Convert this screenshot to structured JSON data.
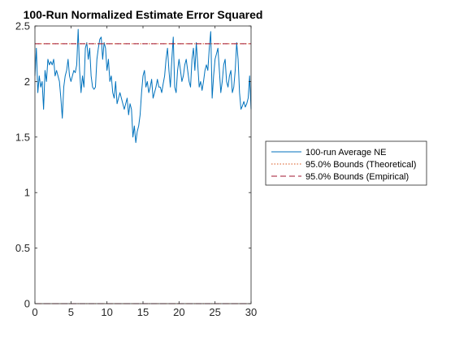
{
  "chart_data": {
    "type": "line",
    "title": "100-Run Normalized Estimate Error Squared",
    "xlabel": "",
    "ylabel": "",
    "xlim": [
      0,
      30
    ],
    "ylim": [
      0,
      2.5
    ],
    "x_ticks": [
      "0",
      "5",
      "10",
      "15",
      "20",
      "25",
      "30"
    ],
    "y_ticks": [
      "0",
      "0.5",
      "1",
      "1.5",
      "2",
      "2.5"
    ],
    "grid": false,
    "legend_position": "right",
    "series": [
      {
        "name": "100-run Average NE",
        "color": "#0072BD",
        "style": "solid",
        "x": [
          0,
          0.2,
          0.4,
          0.6,
          0.8,
          1.0,
          1.2,
          1.4,
          1.6,
          1.8,
          2.0,
          2.2,
          2.4,
          2.6,
          2.8,
          3.0,
          3.2,
          3.4,
          3.6,
          3.8,
          4.0,
          4.2,
          4.4,
          4.6,
          4.8,
          5.0,
          5.2,
          5.4,
          5.6,
          5.8,
          6.0,
          6.2,
          6.4,
          6.6,
          6.8,
          7.0,
          7.2,
          7.4,
          7.6,
          7.8,
          8.0,
          8.2,
          8.4,
          8.6,
          8.8,
          9.0,
          9.2,
          9.4,
          9.6,
          9.8,
          10.0,
          10.2,
          10.4,
          10.6,
          10.8,
          11.0,
          11.2,
          11.4,
          11.6,
          11.8,
          12.0,
          12.2,
          12.4,
          12.6,
          12.8,
          13.0,
          13.2,
          13.4,
          13.6,
          13.8,
          14.0,
          14.2,
          14.4,
          14.6,
          14.8,
          15.0,
          15.2,
          15.4,
          15.6,
          15.8,
          16.0,
          16.2,
          16.4,
          16.6,
          16.8,
          17.0,
          17.2,
          17.4,
          17.6,
          17.8,
          18.0,
          18.2,
          18.4,
          18.6,
          18.8,
          19.0,
          19.2,
          19.4,
          19.6,
          19.8,
          20.0,
          20.2,
          20.4,
          20.6,
          20.8,
          21.0,
          21.2,
          21.4,
          21.6,
          21.8,
          22.0,
          22.2,
          22.4,
          22.6,
          22.8,
          23.0,
          23.2,
          23.4,
          23.6,
          23.8,
          24.0,
          24.2,
          24.4,
          24.6,
          24.8,
          25.0,
          25.2,
          25.4,
          25.6,
          25.8,
          26.0,
          26.2,
          26.4,
          26.6,
          26.8,
          27.0,
          27.2,
          27.4,
          27.6,
          27.8,
          28.0,
          28.2,
          28.4,
          28.6,
          28.8,
          29.0,
          29.2,
          29.4,
          29.6,
          29.8,
          30.0
        ],
        "y": [
          2.05,
          2.3,
          1.9,
          2.05,
          1.95,
          2.0,
          1.75,
          2.1,
          2.0,
          2.2,
          2.15,
          2.18,
          2.15,
          2.2,
          2.05,
          2.1,
          2.05,
          2.0,
          1.85,
          1.67,
          1.95,
          2.05,
          2.1,
          2.2,
          2.05,
          2.0,
          2.05,
          2.1,
          2.08,
          2.15,
          2.47,
          2.1,
          1.9,
          2.05,
          1.95,
          2.3,
          2.35,
          2.2,
          2.3,
          2.05,
          1.95,
          1.93,
          1.95,
          2.2,
          2.3,
          2.38,
          2.4,
          2.2,
          2.35,
          2.3,
          2.1,
          2.2,
          2.0,
          2.05,
          1.9,
          1.85,
          2.0,
          1.8,
          1.85,
          1.9,
          1.85,
          1.8,
          1.75,
          1.8,
          1.85,
          1.7,
          1.8,
          1.75,
          1.5,
          1.6,
          1.45,
          1.55,
          1.6,
          1.7,
          1.9,
          2.05,
          2.1,
          1.95,
          2.0,
          1.9,
          1.95,
          2.02,
          1.85,
          1.9,
          1.95,
          2.02,
          1.95,
          1.95,
          1.9,
          1.98,
          2.05,
          2.2,
          2.3,
          2.1,
          1.95,
          2.2,
          2.4,
          1.95,
          1.9,
          2.1,
          2.2,
          2.1,
          2.0,
          2.05,
          2.15,
          2.2,
          2.1,
          2.0,
          1.95,
          2.2,
          2.3,
          2.1,
          2.35,
          2.15,
          1.95,
          2.0,
          1.92,
          2.0,
          2.1,
          2.15,
          2.1,
          2.3,
          2.45,
          1.85,
          2.05,
          2.2,
          2.25,
          2.3,
          2.1,
          1.9,
          2.0,
          2.15,
          2.2,
          2.0,
          1.95,
          2.05,
          2.1,
          1.9,
          1.95,
          2.1,
          2.35,
          2.2,
          1.9,
          1.75,
          1.78,
          1.82,
          1.77,
          1.8,
          1.85,
          2.05,
          1.75
        ]
      },
      {
        "name": "95.0% Bounds (Theoretical)",
        "color": "#D95319",
        "style": "dotted",
        "x": [
          0,
          30
        ],
        "y_upper": [
          2.34,
          2.34
        ],
        "y_lower": [
          0.0,
          0.0
        ]
      },
      {
        "name": "95.0% Bounds (Empirical)",
        "color": "#A2142F",
        "style": "dashed",
        "x": [
          0,
          30
        ],
        "y_upper": [
          2.34,
          2.34
        ],
        "y_lower": [
          0.0,
          0.0
        ]
      }
    ]
  }
}
